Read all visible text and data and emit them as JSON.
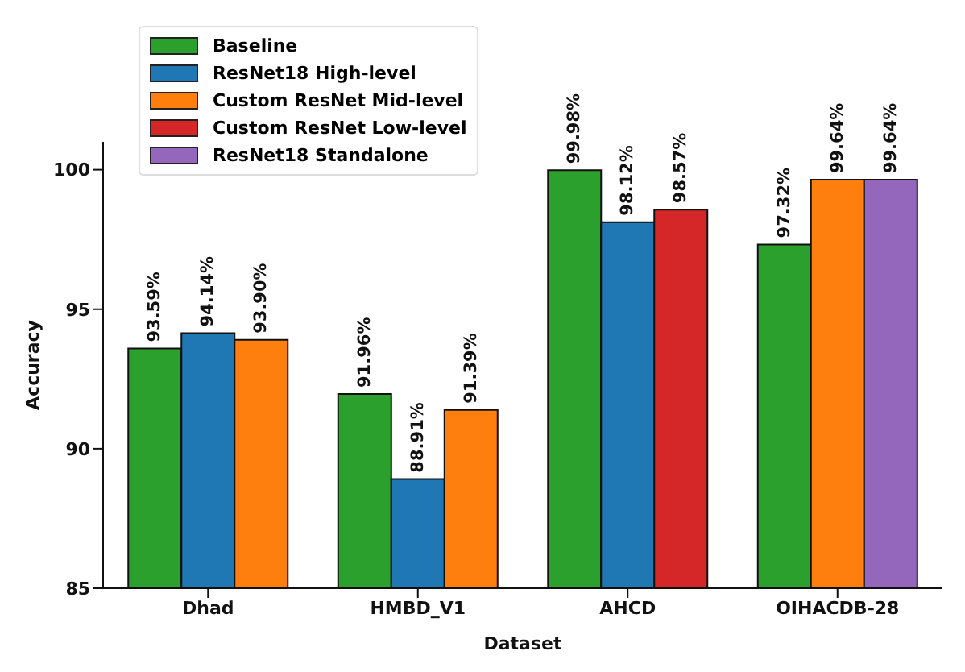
{
  "chart_data": {
    "type": "bar",
    "xlabel": "Dataset",
    "ylabel": "Accuracy",
    "categories": [
      "Dhad",
      "HMBD_V1",
      "AHCD",
      "OIHACDB-28"
    ],
    "series": [
      {
        "name": "Baseline",
        "color": "#2ca02c",
        "values": [
          93.59,
          91.96,
          99.98,
          97.32
        ],
        "value_labels": [
          "93.59%",
          "91.96%",
          "99.98%",
          "97.32%"
        ]
      },
      {
        "name": "ResNet18 High-level",
        "color": "#1f77b4",
        "values": [
          94.14,
          88.91,
          98.12,
          null
        ],
        "value_labels": [
          "94.14%",
          "88.91%",
          "98.12%",
          null
        ]
      },
      {
        "name": "Custom ResNet Mid-level",
        "color": "#ff7f0e",
        "values": [
          93.9,
          91.39,
          null,
          99.64
        ],
        "value_labels": [
          "93.90%",
          "91.39%",
          null,
          "99.64%"
        ]
      },
      {
        "name": "Custom ResNet Low-level",
        "color": "#d62728",
        "values": [
          null,
          null,
          98.57,
          null
        ],
        "value_labels": [
          null,
          null,
          "98.57%",
          null
        ]
      },
      {
        "name": "ResNet18 Standalone",
        "color": "#9467bd",
        "values": [
          null,
          null,
          null,
          99.64
        ],
        "value_labels": [
          null,
          null,
          null,
          "99.64%"
        ]
      }
    ],
    "ylim": [
      85,
      101
    ],
    "yticks": [
      85,
      90,
      95,
      100
    ],
    "grid": false,
    "legend": "top left"
  }
}
